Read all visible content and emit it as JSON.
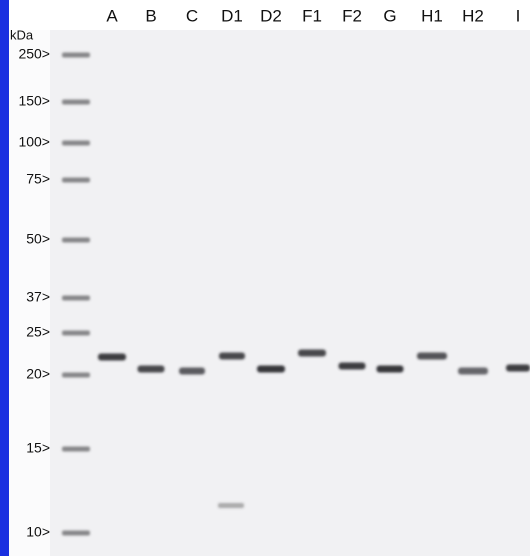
{
  "lanes": [
    "A",
    "B",
    "C",
    "D1",
    "D2",
    "F1",
    "F2",
    "G",
    "H1",
    "H2",
    "I"
  ],
  "unit": "kDa",
  "markers": [
    "250>",
    "150>",
    "100>",
    "75>",
    "50>",
    "37>",
    "25>",
    "20>",
    "15>",
    "10>"
  ]
}
